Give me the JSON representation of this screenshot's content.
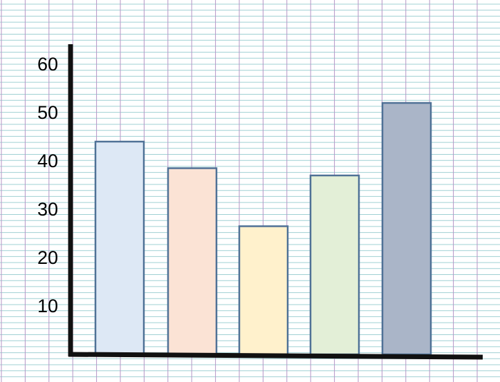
{
  "chart_data": {
    "type": "bar",
    "title": "",
    "xlabel": "",
    "ylabel": "",
    "categories": [
      "",
      "",
      "",
      "",
      ""
    ],
    "values": [
      44,
      38.5,
      26.5,
      37,
      52
    ],
    "ylim": [
      0,
      66
    ],
    "yticks": [
      10,
      20,
      30,
      40,
      50,
      60
    ],
    "ytick_labels": [
      "10",
      "20",
      "30",
      "40",
      "50",
      "60"
    ],
    "grid": true,
    "legend": "none",
    "colors": {
      "bars": [
        "#dde8f5",
        "#fbe3d5",
        "#fff1cc",
        "#e3efd7",
        "#aab5c8"
      ],
      "bar_stroke": "#4f7196",
      "axis": "#111111",
      "grid_vertical": "#b496c6",
      "grid_horizontal": "#9fd0d3",
      "background": "#ffffff"
    }
  }
}
